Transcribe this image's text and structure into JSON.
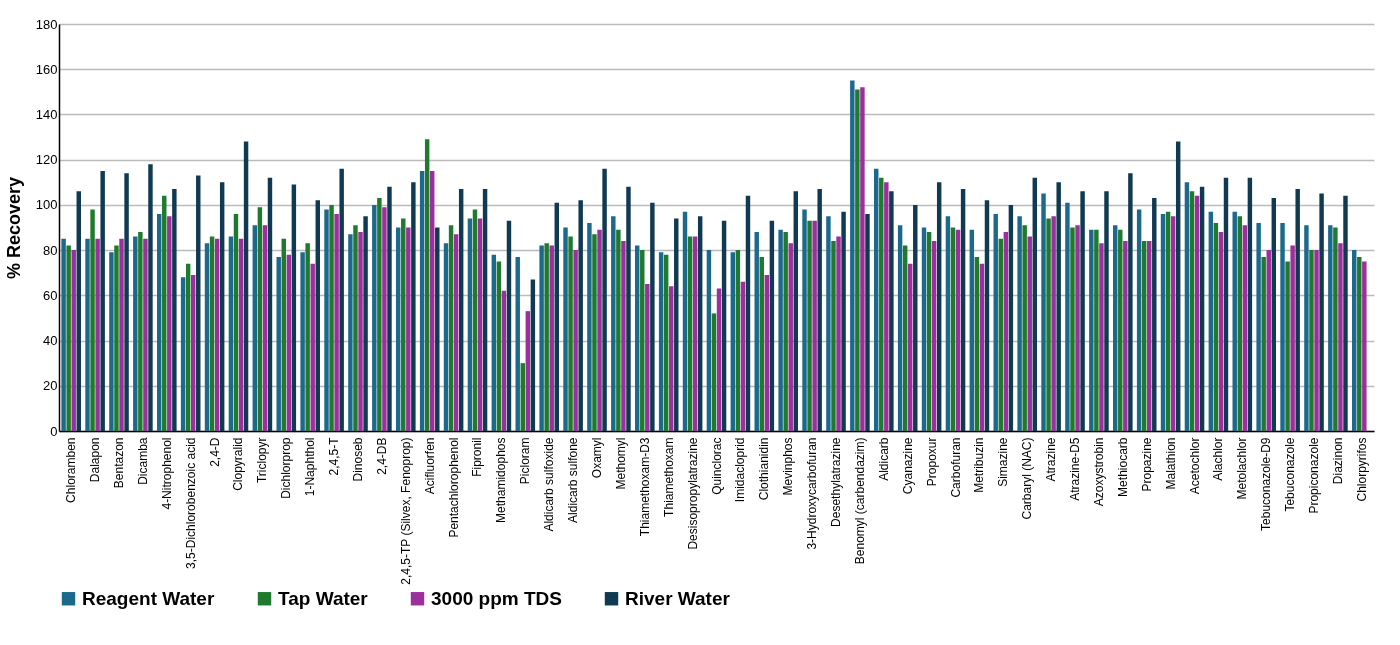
{
  "chart_data": {
    "type": "bar",
    "ylabel": "% Recovery",
    "categories": [
      "Chloramben",
      "Dalapon",
      "Bentazon",
      "Dicamba",
      "4-Nitrophenol",
      "3,5-Dichlorobenzoic acid",
      "2,4-D",
      "Clopyralid",
      "Triclopyr",
      "Dichlorprop",
      "1-Naphthol",
      "2,4,5-T",
      "Dinoseb",
      "2,4-DB",
      "2,4,5-TP (Silvex, Fenoprop)",
      "Acifluorfen",
      "Pentachlorophenol",
      "Fipronil",
      "Methamidophos",
      "Picloram",
      "Aldicarb sulfoxide",
      "Aldicarb sulfone",
      "Oxamyl",
      "Methomyl",
      "Thiamethoxam-D3",
      "Thiamethoxam",
      "Desisopropylatrazine",
      "Quinclorac",
      "Imidacloprid",
      "Clothianidin",
      "Mevinphos",
      "3-Hydroxycarbofuran",
      "Desethylatrazine",
      "Benomyl (carbendazim)",
      "Aldicarb",
      "Cyanazine",
      "Propoxur",
      "Carbofuran",
      "Metribuzin",
      "Simazine",
      "Carbaryl (NAC)",
      "Atrazine",
      "Atrazine-D5",
      "Azoxystrobin",
      "Methiocarb",
      "Propazine",
      "Malathion",
      "Acetochlor",
      "Alachlor",
      "Metolachlor",
      "Tebuconazole-D9",
      "Tebuconazole",
      "Propiconazole",
      "Diazinon",
      "Chlorpyrifos"
    ],
    "series": [
      {
        "name": "Reagent Water",
        "color": "#1b6a8c",
        "values": [
          85,
          85,
          79,
          86,
          96,
          68,
          83,
          86,
          91,
          77,
          79,
          98,
          87,
          100,
          90,
          115,
          83,
          94,
          78,
          77,
          82,
          90,
          92,
          95,
          82,
          79,
          97,
          80,
          79,
          88,
          89,
          98,
          95,
          155,
          116,
          91,
          90,
          95,
          89,
          96,
          95,
          105,
          101,
          89,
          91,
          98,
          96,
          110,
          97,
          97,
          92,
          92,
          91,
          91,
          80
        ]
      },
      {
        "name": "Tap Water",
        "color": "#1f7a2e",
        "values": [
          82,
          98,
          82,
          88,
          104,
          74,
          86,
          96,
          99,
          85,
          83,
          100,
          91,
          103,
          94,
          129,
          91,
          98,
          75,
          30,
          83,
          86,
          87,
          89,
          80,
          78,
          86,
          52,
          80,
          77,
          88,
          93,
          84,
          151,
          112,
          82,
          88,
          90,
          77,
          85,
          91,
          94,
          90,
          89,
          89,
          84,
          97,
          106,
          92,
          95,
          77,
          75,
          80,
          90,
          77
        ]
      },
      {
        "name": "3000 ppm TDS",
        "color": "#9b2f9b",
        "values": [
          80,
          85,
          85,
          85,
          95,
          69,
          85,
          85,
          91,
          78,
          74,
          96,
          88,
          99,
          90,
          115,
          87,
          94,
          62,
          53,
          82,
          80,
          89,
          84,
          65,
          64,
          86,
          63,
          66,
          69,
          83,
          93,
          86,
          152,
          110,
          74,
          84,
          89,
          74,
          88,
          86,
          95,
          91,
          83,
          84,
          84,
          95,
          104,
          88,
          91,
          80,
          82,
          80,
          83,
          75
        ]
      },
      {
        "name": "River Water",
        "color": "#0f3a52",
        "values": [
          106,
          115,
          114,
          118,
          107,
          113,
          110,
          128,
          112,
          109,
          102,
          116,
          95,
          108,
          110,
          90,
          107,
          107,
          93,
          67,
          101,
          102,
          116,
          108,
          101,
          94,
          95,
          93,
          104,
          93,
          106,
          107,
          97,
          96,
          106,
          100,
          110,
          107,
          102,
          100,
          112,
          110,
          106,
          106,
          114,
          103,
          128,
          108,
          112,
          112,
          103,
          107,
          105,
          104,
          null
        ]
      }
    ],
    "ylim": [
      0,
      180
    ],
    "yticks": [
      0,
      20,
      40,
      60,
      80,
      100,
      120,
      140,
      160,
      180
    ],
    "grid": "y",
    "legend": "bottom"
  }
}
